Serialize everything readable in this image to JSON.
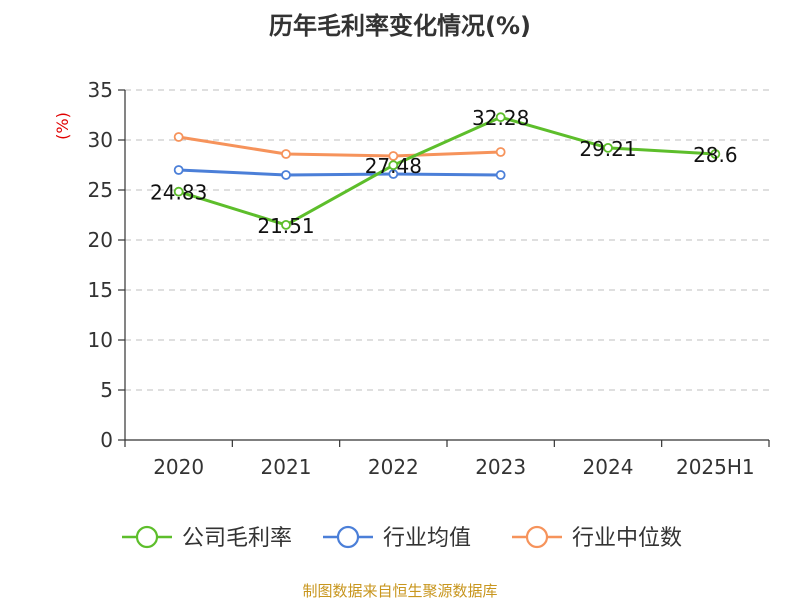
{
  "chart_data": {
    "type": "line",
    "title": "历年毛利率变化情况(%)",
    "ylabel": "(%)",
    "xlabel": "",
    "categories": [
      "2020",
      "2021",
      "2022",
      "2023",
      "2024",
      "2025H1"
    ],
    "ylim": [
      0,
      35
    ],
    "yticks": [
      0,
      5,
      10,
      15,
      20,
      25,
      30,
      35
    ],
    "grid": true,
    "legend_position": "bottom",
    "series": [
      {
        "name": "公司毛利率",
        "color": "#5dbe2b",
        "values": [
          24.83,
          21.51,
          27.48,
          32.28,
          29.21,
          28.6
        ],
        "labels": [
          "24.83",
          "21.51",
          "27.48",
          "32.28",
          "29.21",
          "28.6"
        ]
      },
      {
        "name": "行业均值",
        "color": "#4b7fd8",
        "values": [
          27.0,
          26.5,
          26.6,
          26.5,
          null,
          null
        ]
      },
      {
        "name": "行业中位数",
        "color": "#f6935b",
        "values": [
          30.3,
          28.6,
          28.4,
          28.8,
          null,
          null
        ]
      }
    ]
  },
  "footer": {
    "source": "制图数据来自恒生聚源数据库"
  }
}
